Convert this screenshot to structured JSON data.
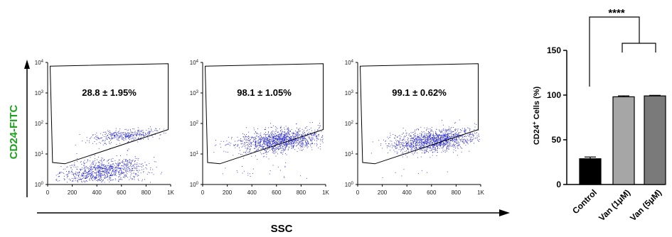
{
  "flow": {
    "ylabel": "CD24-FITC",
    "xlabel": "SSC",
    "label_color": "#1aa31a",
    "dot_color": "#2222cc",
    "x_ticks": [
      "0",
      "200",
      "400",
      "600",
      "800",
      "1K"
    ],
    "y_ticks": [
      {
        "base": "10",
        "exp": "0"
      },
      {
        "base": "10",
        "exp": "1"
      },
      {
        "base": "10",
        "exp": "2"
      },
      {
        "base": "10",
        "exp": "3"
      },
      {
        "base": "10",
        "exp": "4"
      }
    ],
    "panels": [
      {
        "gate_text": "28.8 ± 1.95%",
        "positive_fraction": 0.288
      },
      {
        "gate_text": "98.1 ± 1.05%",
        "positive_fraction": 0.981
      },
      {
        "gate_text": "99.1 ± 0.62%",
        "positive_fraction": 0.991
      }
    ]
  },
  "chart_data": {
    "type": "bar",
    "categories": [
      "Control",
      "Van (1μM)",
      "Van (5μM)"
    ],
    "values": [
      28.8,
      98.1,
      99.1
    ],
    "errors": [
      1.95,
      1.05,
      0.62
    ],
    "bar_colors": [
      "#000000",
      "#a6a6a6",
      "#7a7a7a"
    ],
    "ylabel": {
      "pre": "CD24",
      "sup": "+",
      "post": " Cells (%)"
    },
    "ylim": [
      0,
      150
    ],
    "yticks": [
      "0",
      "50",
      "100",
      "150"
    ],
    "significance": "****"
  }
}
